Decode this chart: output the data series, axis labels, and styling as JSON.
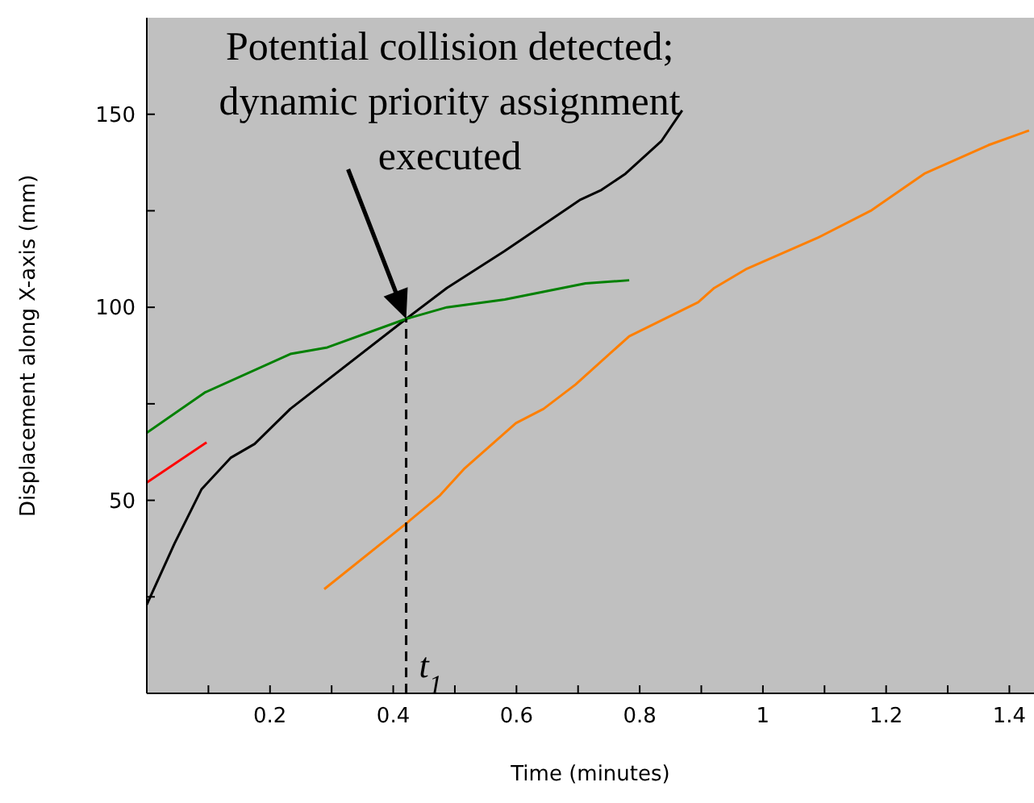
{
  "chart_data": {
    "type": "line",
    "xlabel": "Time (minutes)",
    "ylabel": "Displacement along X-axis (mm)",
    "xlim": [
      0,
      1.44
    ],
    "xticks": [
      {
        "value": 0.1,
        "label": null
      },
      0.2,
      {
        "value": 0.3,
        "label": null
      },
      0.4,
      {
        "value": 0.5,
        "label": null
      },
      0.6,
      {
        "value": 0.7,
        "label": null
      },
      0.8,
      {
        "value": 0.9,
        "label": null
      },
      1,
      {
        "value": 1.1,
        "label": null
      },
      1.2,
      {
        "value": 1.3,
        "label": null
      },
      1.4
    ],
    "ylim": [
      0,
      175
    ],
    "yticks": [
      {
        "value": 25,
        "label": null
      },
      50,
      {
        "value": 75,
        "label": null
      },
      100,
      {
        "value": 125,
        "label": null
      },
      150
    ],
    "marker": "none",
    "line_style": "solid",
    "series": [
      {
        "color": "#000000",
        "x": [
          0,
          0.045,
          0.089,
          0.136,
          0.175,
          0.233,
          0.421,
          0.487,
          0.581,
          0.704,
          0.738,
          0.777,
          0.835,
          0.869
        ],
        "values": [
          23,
          38.8,
          52.9,
          61,
          64.6,
          73.7,
          97,
          105,
          114.6,
          127.9,
          130.4,
          134.6,
          143,
          151
        ]
      },
      {
        "color": "#008000",
        "x": [
          0,
          0.094,
          0.233,
          0.293,
          0.421,
          0.487,
          0.581,
          0.712,
          0.783
        ],
        "values": [
          67.5,
          77.9,
          87.9,
          89.6,
          97,
          100,
          102,
          106.2,
          107
        ]
      },
      {
        "color": "#ff0000",
        "x": [
          0,
          0.097
        ],
        "values": [
          54.6,
          65
        ]
      },
      {
        "color": "#ff7f00",
        "x": [
          0.288,
          0.421,
          0.476,
          0.516,
          0.599,
          0.644,
          0.696,
          0.783,
          0.895,
          0.921,
          0.974,
          1.089,
          1.175,
          1.262,
          1.366,
          1.432
        ],
        "values": [
          27,
          44,
          51.3,
          58.3,
          70,
          73.7,
          80,
          92.5,
          101.3,
          105,
          110,
          118,
          125,
          134.6,
          142,
          145.8
        ]
      }
    ],
    "ref_lines": [
      {
        "axis": "x",
        "value": 0.421,
        "label": "t$_{1}$",
        "line_style": "dashed",
        "color": "#000000"
      }
    ],
    "annotations": [
      "Potential collision detected;\ndynamic priority assignment\nexecuted"
    ]
  }
}
